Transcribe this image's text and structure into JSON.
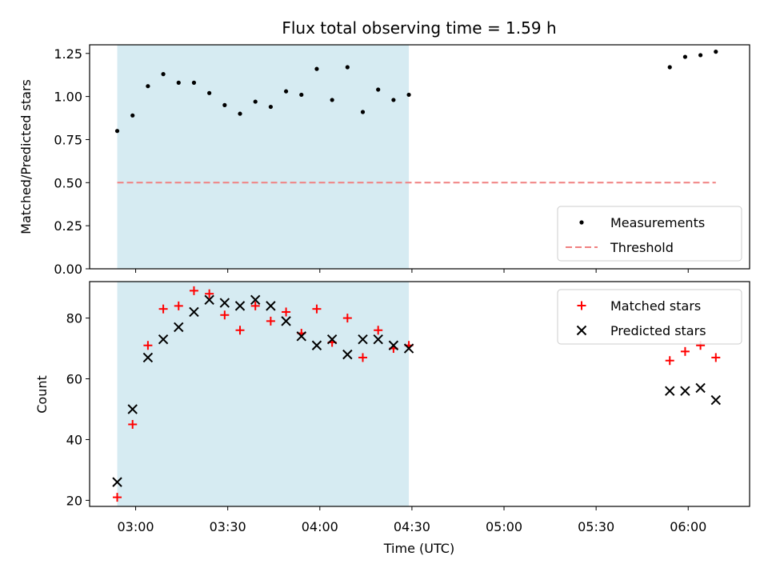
{
  "chart_data": [
    {
      "type": "scatter",
      "title": "Flux total observing time = 1.59 h",
      "xlabel": "",
      "ylabel": "Matched/Predicted stars",
      "ylim": [
        0,
        1.3
      ],
      "yticks": [
        "0.00",
        "0.25",
        "0.50",
        "0.75",
        "1.00",
        "1.25"
      ],
      "xlim": [
        "02:45",
        "06:20"
      ],
      "shaded_region": {
        "x": [
          "02:54",
          "04:29"
        ],
        "color": "#add8e6"
      },
      "legend": {
        "position": "lower-right"
      },
      "series": [
        {
          "name": "Measurements",
          "marker": "dot",
          "color": "#000000",
          "points": [
            [
              "02:54",
              0.8
            ],
            [
              "02:59",
              0.89
            ],
            [
              "03:04",
              1.06
            ],
            [
              "03:09",
              1.13
            ],
            [
              "03:14",
              1.08
            ],
            [
              "03:19",
              1.08
            ],
            [
              "03:24",
              1.02
            ],
            [
              "03:29",
              0.95
            ],
            [
              "03:34",
              0.9
            ],
            [
              "03:39",
              0.97
            ],
            [
              "03:44",
              0.94
            ],
            [
              "03:49",
              1.03
            ],
            [
              "03:54",
              1.01
            ],
            [
              "03:59",
              1.16
            ],
            [
              "04:04",
              0.98
            ],
            [
              "04:09",
              1.17
            ],
            [
              "04:14",
              0.91
            ],
            [
              "04:19",
              1.04
            ],
            [
              "04:24",
              0.98
            ],
            [
              "04:29",
              1.01
            ],
            [
              "05:54",
              1.17
            ],
            [
              "05:59",
              1.23
            ],
            [
              "06:04",
              1.24
            ],
            [
              "06:09",
              1.26
            ]
          ]
        },
        {
          "name": "Threshold",
          "marker": "dashed-line",
          "color": "#f08080",
          "points": [
            [
              "02:54",
              0.5
            ],
            [
              "06:09",
              0.5
            ]
          ]
        }
      ]
    },
    {
      "type": "scatter",
      "title": "",
      "xlabel": "Time (UTC)",
      "ylabel": "Count",
      "ylim": [
        18,
        92
      ],
      "yticks": [
        "20",
        "40",
        "60",
        "80"
      ],
      "xlim": [
        "02:45",
        "06:20"
      ],
      "xticks": [
        "03:00",
        "03:30",
        "04:00",
        "04:30",
        "05:00",
        "05:30",
        "06:00"
      ],
      "shaded_region": {
        "x": [
          "02:54",
          "04:29"
        ],
        "color": "#add8e6"
      },
      "legend": {
        "position": "upper-right"
      },
      "series": [
        {
          "name": "Matched stars",
          "marker": "plus",
          "color": "#ff0000",
          "points": [
            [
              "02:54",
              21
            ],
            [
              "02:59",
              45
            ],
            [
              "03:04",
              71
            ],
            [
              "03:09",
              83
            ],
            [
              "03:14",
              84
            ],
            [
              "03:19",
              89
            ],
            [
              "03:24",
              88
            ],
            [
              "03:29",
              81
            ],
            [
              "03:34",
              76
            ],
            [
              "03:39",
              84
            ],
            [
              "03:44",
              79
            ],
            [
              "03:49",
              82
            ],
            [
              "03:54",
              75
            ],
            [
              "03:59",
              83
            ],
            [
              "04:04",
              72
            ],
            [
              "04:09",
              80
            ],
            [
              "04:14",
              67
            ],
            [
              "04:19",
              76
            ],
            [
              "04:24",
              70
            ],
            [
              "04:29",
              71
            ],
            [
              "05:54",
              66
            ],
            [
              "05:59",
              69
            ],
            [
              "06:04",
              71
            ],
            [
              "06:09",
              67
            ]
          ]
        },
        {
          "name": "Predicted stars",
          "marker": "x",
          "color": "#000000",
          "points": [
            [
              "02:54",
              26
            ],
            [
              "02:59",
              50
            ],
            [
              "03:04",
              67
            ],
            [
              "03:09",
              73
            ],
            [
              "03:14",
              77
            ],
            [
              "03:19",
              82
            ],
            [
              "03:24",
              86
            ],
            [
              "03:29",
              85
            ],
            [
              "03:34",
              84
            ],
            [
              "03:39",
              86
            ],
            [
              "03:44",
              84
            ],
            [
              "03:49",
              79
            ],
            [
              "03:54",
              74
            ],
            [
              "03:59",
              71
            ],
            [
              "04:04",
              73
            ],
            [
              "04:09",
              68
            ],
            [
              "04:14",
              73
            ],
            [
              "04:19",
              73
            ],
            [
              "04:24",
              71
            ],
            [
              "04:29",
              70
            ],
            [
              "05:54",
              56
            ],
            [
              "05:59",
              56
            ],
            [
              "06:04",
              57
            ],
            [
              "06:09",
              53
            ]
          ]
        }
      ]
    }
  ]
}
